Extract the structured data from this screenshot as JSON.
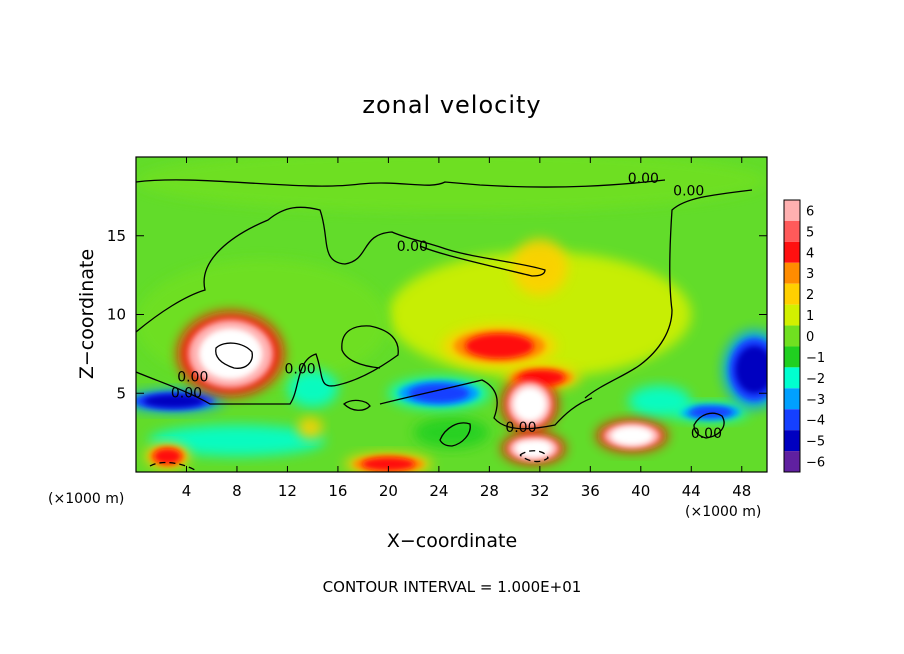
{
  "chart_data": {
    "type": "heatmap",
    "title": "zonal velocity",
    "xlabel": "X−coordinate",
    "ylabel": "Z−coordinate",
    "x_unit": "(×1000 m)",
    "x_unit_right": "(×1000 m)",
    "xlim": [
      0,
      50
    ],
    "ylim": [
      0,
      20
    ],
    "x_ticks": [
      "4",
      "8",
      "12",
      "16",
      "20",
      "24",
      "28",
      "32",
      "36",
      "40",
      "44",
      "48"
    ],
    "x_tick_values": [
      4,
      8,
      12,
      16,
      20,
      24,
      28,
      32,
      36,
      40,
      44,
      48
    ],
    "y_ticks": [
      "5",
      "10",
      "15"
    ],
    "y_tick_values": [
      5,
      10,
      15
    ],
    "colorbar": {
      "labels": [
        "6",
        "5",
        "4",
        "3",
        "2",
        "1",
        "0",
        "−1",
        "−2",
        "−3",
        "−4",
        "−5",
        "−6"
      ],
      "values": [
        6,
        5,
        4,
        3,
        2,
        1,
        0,
        -1,
        -2,
        -3,
        -4,
        -5,
        -6
      ],
      "colors": [
        "#ffb0b0",
        "#ff5a5a",
        "#ff1010",
        "#ff8c00",
        "#ffd000",
        "#d2f000",
        "#70e020",
        "#20d020",
        "#00ffd0",
        "#00a0ff",
        "#1540ff",
        "#0000c0",
        "#6020a0"
      ]
    },
    "contour_label": "0.00",
    "contour_label_points": [
      [
        40.2,
        18.6
      ],
      [
        43.8,
        17.8
      ],
      [
        21.9,
        14.3
      ],
      [
        4.5,
        6.0
      ],
      [
        4.0,
        5.0
      ],
      [
        13.0,
        6.5
      ],
      [
        30.5,
        2.8
      ],
      [
        45.2,
        2.4
      ]
    ],
    "features": [
      {
        "x": 7.5,
        "z": 7.5,
        "value": 7.0,
        "rx": 4.2,
        "rz": 2.7
      },
      {
        "x": 31.2,
        "z": 4.3,
        "value": 6.5,
        "rx": 2.2,
        "rz": 1.8
      },
      {
        "x": 39.3,
        "z": 2.3,
        "value": 6.5,
        "rx": 2.8,
        "rz": 1.0
      },
      {
        "x": 31.5,
        "z": 1.5,
        "value": 6.5,
        "rx": 2.5,
        "rz": 1.0
      },
      {
        "x": 28.8,
        "z": 8.0,
        "value": 4.0,
        "rx": 4.5,
        "rz": 1.3
      },
      {
        "x": 32.2,
        "z": 6.0,
        "value": 4.0,
        "rx": 3.0,
        "rz": 0.8
      },
      {
        "x": 32.0,
        "z": 13.0,
        "value": 3.0,
        "rx": 2.2,
        "rz": 1.8
      },
      {
        "x": 20.0,
        "z": 0.5,
        "value": 4.0,
        "rx": 3.5,
        "rz": 0.7
      },
      {
        "x": 2.5,
        "z": 1.0,
        "value": 4.0,
        "rx": 1.8,
        "rz": 0.8
      },
      {
        "x": 13.8,
        "z": 2.8,
        "value": 3.5,
        "rx": 1.0,
        "rz": 0.7
      },
      {
        "x": 3.0,
        "z": 4.5,
        "value": -5.0,
        "rx": 4.0,
        "rz": 0.7
      },
      {
        "x": 24.0,
        "z": 5.0,
        "value": -4.0,
        "rx": 4.0,
        "rz": 1.0
      },
      {
        "x": 14.0,
        "z": 5.3,
        "value": -3.0,
        "rx": 2.0,
        "rz": 1.2
      },
      {
        "x": 49.0,
        "z": 6.5,
        "value": -5.0,
        "rx": 2.5,
        "rz": 2.5
      },
      {
        "x": 41.5,
        "z": 4.5,
        "value": -3.0,
        "rx": 2.5,
        "rz": 1.0
      },
      {
        "x": 45.5,
        "z": 3.8,
        "value": -4.0,
        "rx": 3.0,
        "rz": 0.6
      },
      {
        "x": 8.0,
        "z": 2.0,
        "value": -3.5,
        "rx": 7.0,
        "rz": 1.0
      },
      {
        "x": 25.0,
        "z": 2.5,
        "value": -2.5,
        "rx": 3.0,
        "rz": 1.0
      },
      {
        "x": 10.0,
        "z": 9.5,
        "value": 0.5,
        "rx": 10.0,
        "rz": 4.0
      },
      {
        "x": 32.0,
        "z": 10.0,
        "value": 1.5,
        "rx": 12.0,
        "rz": 4.0
      },
      {
        "x": 25.0,
        "z": 18.5,
        "value": 0.3,
        "rx": 25.0,
        "rz": 2.0
      }
    ],
    "footer": "CONTOUR INTERVAL = 1.000E+01"
  }
}
